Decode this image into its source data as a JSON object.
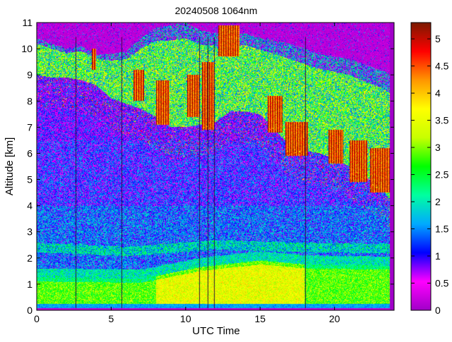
{
  "chart_data": {
    "type": "heatmap",
    "title": "20240508 1064nm",
    "xlabel": "UTC Time",
    "ylabel": "Altitude [km]",
    "xlim": [
      0,
      24
    ],
    "ylim": [
      0,
      11
    ],
    "x_ticks": [
      0,
      5,
      10,
      15,
      20
    ],
    "y_ticks": [
      0,
      1,
      2,
      3,
      4,
      5,
      6,
      7,
      8,
      9,
      10,
      11
    ],
    "colorbar": {
      "range": [
        0,
        5.3
      ],
      "ticks": [
        0,
        0.5,
        1,
        1.5,
        2,
        2.5,
        3,
        3.5,
        4,
        4.5,
        5
      ],
      "colors": [
        "#a000c8",
        "#ff00ff",
        "#0000ff",
        "#00aaff",
        "#00ffa0",
        "#00ff00",
        "#c8ff00",
        "#ffff00",
        "#ff9600",
        "#ff0000",
        "#7a1a00"
      ]
    },
    "features": {
      "boundary_layer": {
        "x": [
          0,
          7,
          11,
          15,
          18,
          24
        ],
        "top_km": [
          1.25,
          1.2,
          1.65,
          1.9,
          1.75,
          1.7
        ],
        "value": 3.2
      },
      "surface_layer": {
        "x": [
          0,
          24
        ],
        "top_km": [
          0.25,
          0.25
        ],
        "value": 1.6
      },
      "aerosol_layer": {
        "x": [
          0,
          6,
          12,
          18,
          24
        ],
        "altitude_km": [
          2.4,
          2.25,
          2.5,
          2.4,
          2.35
        ],
        "value": 1.5
      },
      "cloud_top_edge": {
        "x": [
          0,
          1,
          2,
          3,
          4,
          5,
          6,
          7,
          8,
          9,
          10,
          11,
          12,
          13,
          14,
          15,
          16,
          17,
          18,
          19,
          20,
          21,
          22,
          23,
          24
        ],
        "top_km": [
          10.4,
          10.2,
          10.0,
          10.1,
          9.8,
          9.8,
          9.9,
          10.4,
          10.8,
          10.9,
          11.0,
          10.7,
          10.6,
          10.5,
          10.6,
          10.4,
          10.3,
          10.2,
          10.0,
          9.8,
          9.7,
          9.6,
          9.4,
          9.2,
          9.0
        ]
      },
      "cloud_base_edge": {
        "x": [
          0,
          1,
          2,
          3,
          4,
          5,
          6,
          7,
          8,
          9,
          10,
          11,
          12,
          13,
          14,
          15,
          16,
          17,
          18,
          19,
          20,
          21,
          22,
          23,
          24
        ],
        "base_km": [
          9.0,
          8.9,
          8.9,
          8.8,
          8.6,
          8.1,
          7.9,
          7.7,
          7.4,
          7.0,
          7.0,
          7.1,
          7.2,
          7.6,
          7.6,
          7.5,
          6.9,
          6.3,
          6.1,
          6.0,
          5.8,
          5.5,
          5.1,
          4.8,
          4.0
        ],
        "value": 5.0
      },
      "dark_cloud_patches": [
        {
          "x0": 3.7,
          "x1": 4.0,
          "y0": 9.2,
          "y1": 10.0
        },
        {
          "x0": 6.5,
          "x1": 7.2,
          "y0": 8.0,
          "y1": 9.2
        },
        {
          "x0": 8.0,
          "x1": 8.9,
          "y0": 7.1,
          "y1": 8.8
        },
        {
          "x0": 10.1,
          "x1": 10.9,
          "y0": 7.4,
          "y1": 9.0
        },
        {
          "x0": 11.1,
          "x1": 11.9,
          "y0": 6.9,
          "y1": 9.5
        },
        {
          "x0": 12.2,
          "x1": 13.6,
          "y0": 9.7,
          "y1": 10.9
        },
        {
          "x0": 15.5,
          "x1": 16.5,
          "y0": 6.8,
          "y1": 8.2
        },
        {
          "x0": 16.7,
          "x1": 18.2,
          "y0": 5.9,
          "y1": 7.2
        },
        {
          "x0": 19.6,
          "x1": 20.6,
          "y0": 5.6,
          "y1": 6.9
        },
        {
          "x0": 21.0,
          "x1": 22.2,
          "y0": 4.9,
          "y1": 6.5
        },
        {
          "x0": 22.4,
          "x1": 23.7,
          "y0": 4.5,
          "y1": 6.2
        }
      ],
      "vertical_artifacts": [
        2.6,
        5.7,
        10.9,
        11.5,
        11.9,
        18.0
      ]
    }
  }
}
